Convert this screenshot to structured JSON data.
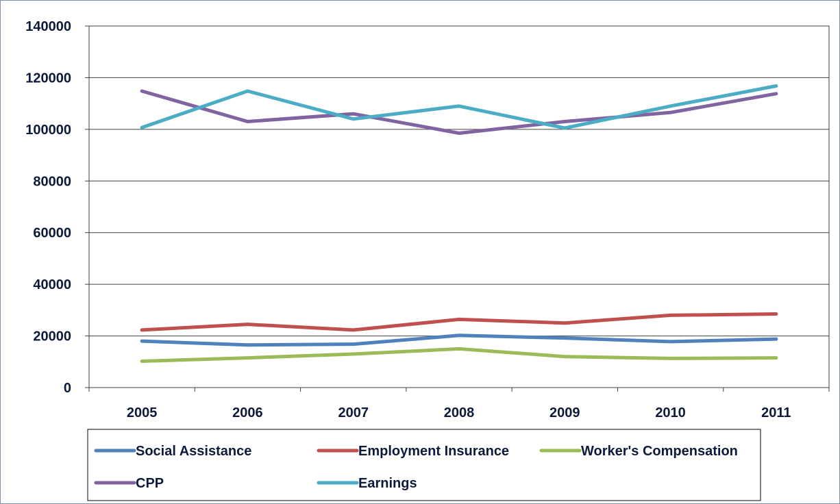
{
  "chart_data": {
    "type": "line",
    "title": "",
    "xlabel": "",
    "ylabel": "",
    "categories": [
      "2005",
      "2006",
      "2007",
      "2008",
      "2009",
      "2010",
      "2011"
    ],
    "ylim": [
      0,
      140000
    ],
    "yticks": [
      0,
      20000,
      40000,
      60000,
      80000,
      100000,
      120000,
      140000
    ],
    "ytick_labels": [
      "0",
      "20000",
      "40000",
      "60000",
      "80000",
      "100000",
      "120000",
      "140000"
    ],
    "grid": true,
    "legend_position": "bottom",
    "series": [
      {
        "name": "Social Assistance",
        "color": "#4f81bd",
        "values": [
          18000,
          16500,
          16800,
          20200,
          19200,
          17800,
          18800
        ]
      },
      {
        "name": "Employment Insurance",
        "color": "#c0504d",
        "values": [
          22300,
          24500,
          22300,
          26400,
          25000,
          28000,
          28500
        ]
      },
      {
        "name": "Worker's Compensation",
        "color": "#9bbb59",
        "values": [
          10200,
          11500,
          13000,
          15000,
          12000,
          11300,
          11500
        ]
      },
      {
        "name": "CPP",
        "color": "#8064a2",
        "values": [
          114800,
          103000,
          106000,
          98500,
          103000,
          106500,
          113800
        ]
      },
      {
        "name": "Earnings",
        "color": "#4bacc6",
        "values": [
          100700,
          114800,
          104000,
          109000,
          100500,
          109000,
          116800
        ]
      }
    ]
  }
}
